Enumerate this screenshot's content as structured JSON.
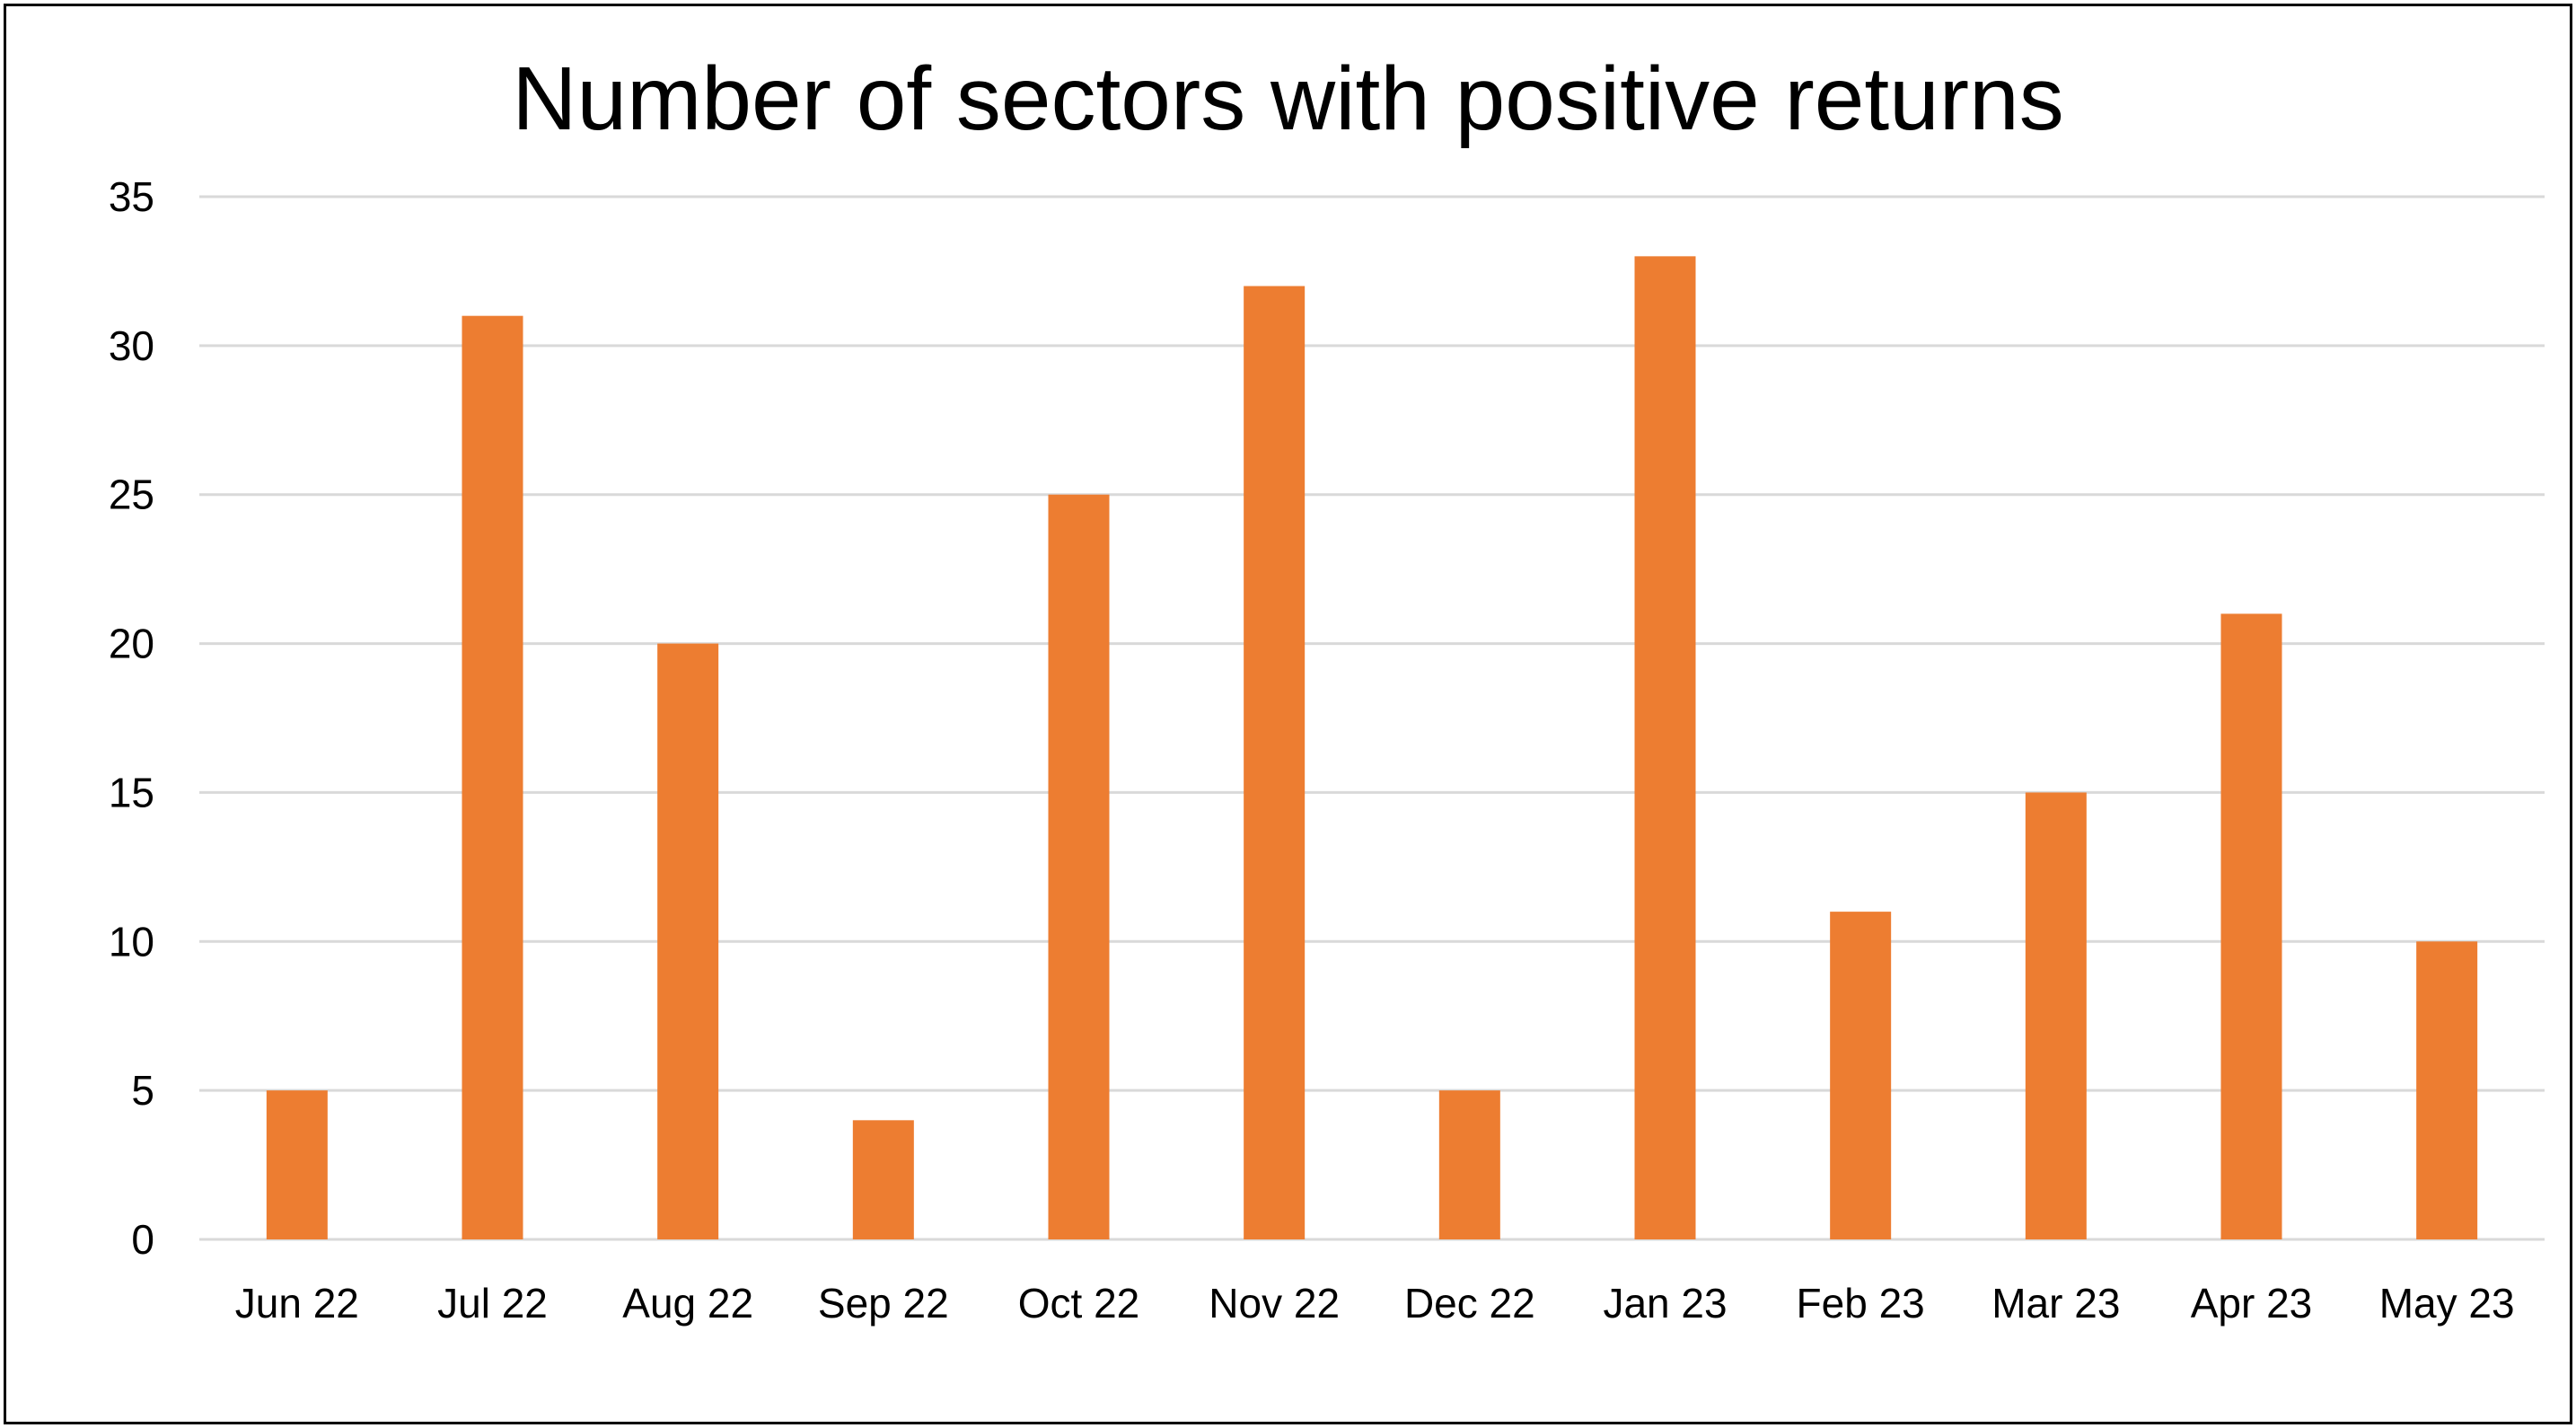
{
  "chart_data": {
    "type": "bar",
    "title": "Number of sectors with positive returns",
    "xlabel": "",
    "ylabel": "",
    "categories": [
      "Jun 22",
      "Jul 22",
      "Aug 22",
      "Sep 22",
      "Oct 22",
      "Nov 22",
      "Dec 22",
      "Jan 23",
      "Feb 23",
      "Mar 23",
      "Apr 23",
      "May 23"
    ],
    "values": [
      5,
      31,
      20,
      4,
      25,
      32,
      5,
      33,
      11,
      15,
      21,
      10
    ],
    "ylim": [
      0,
      35
    ],
    "yticks": [
      0,
      5,
      10,
      15,
      20,
      25,
      30,
      35
    ],
    "grid": true,
    "legend": "none",
    "bar_color": "#ED7D31",
    "grid_color": "#D9D9D9"
  }
}
